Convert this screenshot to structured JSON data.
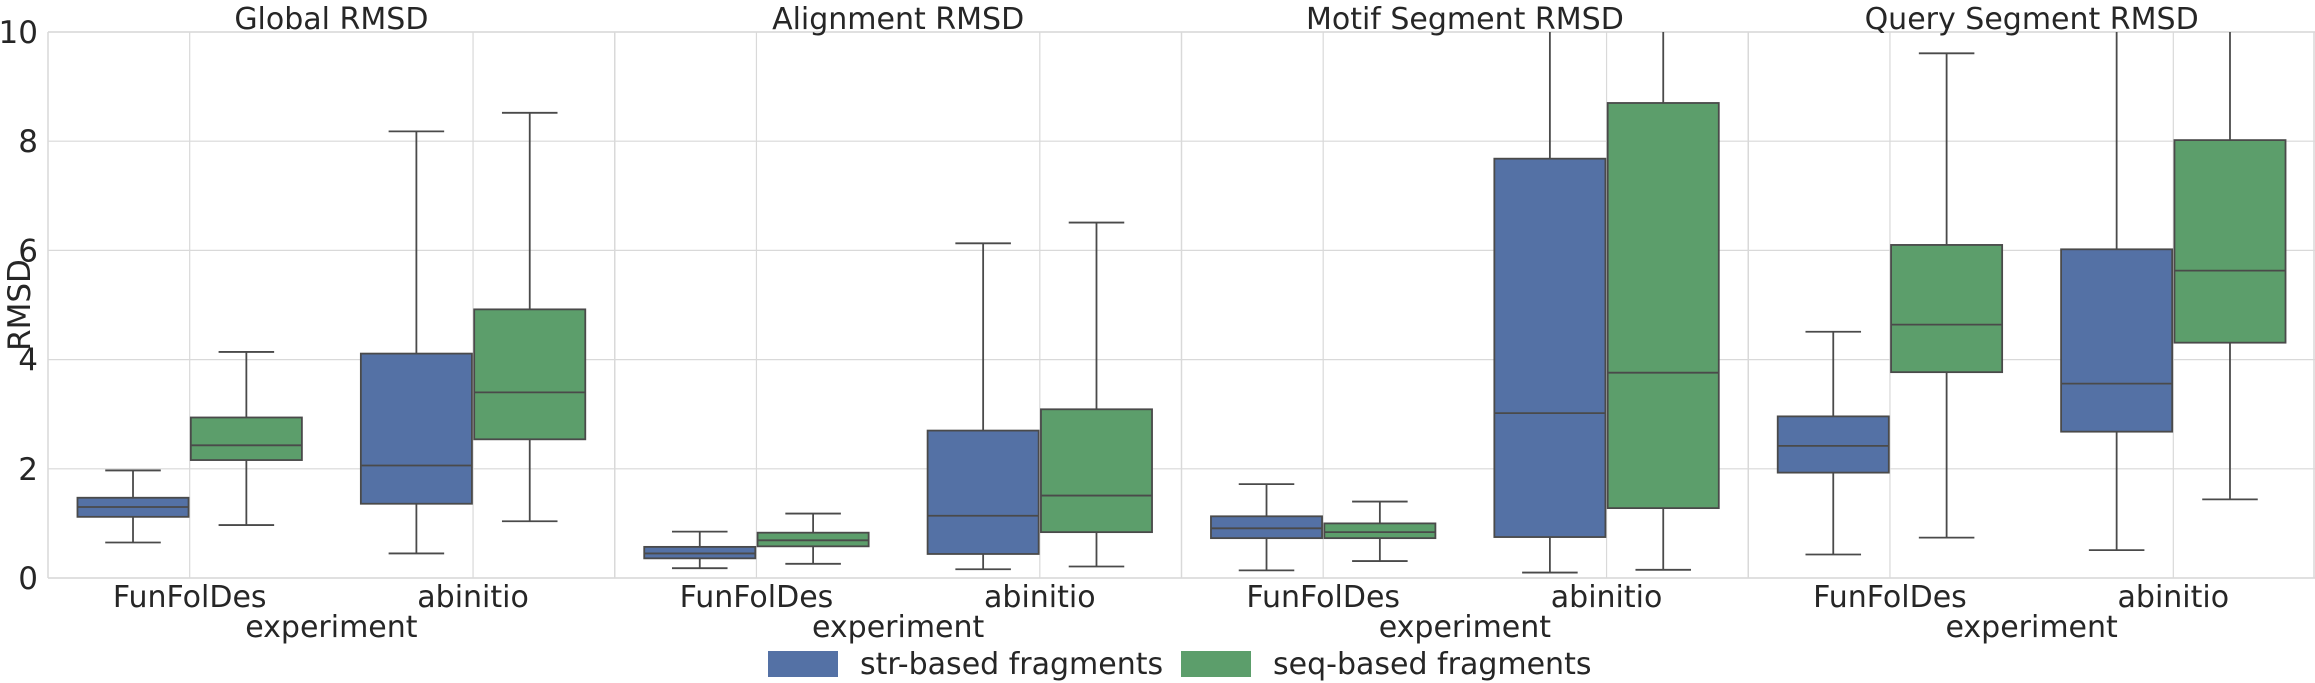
{
  "chart_data": {
    "type": "boxplot",
    "ylabel": "RMSD",
    "xlabel": "experiment",
    "ylim": [
      0,
      10
    ],
    "yticks": [
      0,
      2,
      4,
      6,
      8,
      10
    ],
    "categories": [
      "FunFolDes",
      "abinitio"
    ],
    "legend": {
      "placement": "bottom-center",
      "entries": [
        {
          "name": "str-based fragments",
          "color": "#5471a5"
        },
        {
          "name": "seq-based fragments",
          "color": "#5c9e6b"
        }
      ]
    },
    "panels": [
      {
        "title": "Global RMSD",
        "show_xlabel": true,
        "boxes": [
          [
            {
              "whislo": 0.65,
              "q1": 1.12,
              "med": 1.3,
              "q3": 1.47,
              "whishi": 1.97
            },
            {
              "whislo": 0.97,
              "q1": 2.16,
              "med": 2.43,
              "q3": 2.94,
              "whishi": 4.14
            }
          ],
          [
            {
              "whislo": 0.45,
              "q1": 1.36,
              "med": 2.06,
              "q3": 4.11,
              "whishi": 8.18
            },
            {
              "whislo": 1.04,
              "q1": 2.54,
              "med": 3.4,
              "q3": 4.92,
              "whishi": 8.52
            }
          ]
        ]
      },
      {
        "title": "Alignment RMSD",
        "show_xlabel": true,
        "boxes": [
          [
            {
              "whislo": 0.18,
              "q1": 0.36,
              "med": 0.45,
              "q3": 0.57,
              "whishi": 0.85
            },
            {
              "whislo": 0.26,
              "q1": 0.58,
              "med": 0.69,
              "q3": 0.83,
              "whishi": 1.18
            }
          ],
          [
            {
              "whislo": 0.16,
              "q1": 0.44,
              "med": 1.14,
              "q3": 2.7,
              "whishi": 6.13
            },
            {
              "whislo": 0.21,
              "q1": 0.84,
              "med": 1.51,
              "q3": 3.09,
              "whishi": 6.51
            }
          ]
        ]
      },
      {
        "title": "Motif Segment RMSD",
        "show_xlabel": true,
        "boxes": [
          [
            {
              "whislo": 0.14,
              "q1": 0.73,
              "med": 0.91,
              "q3": 1.13,
              "whishi": 1.72
            },
            {
              "whislo": 0.31,
              "q1": 0.73,
              "med": 0.84,
              "q3": 1.0,
              "whishi": 1.4
            }
          ],
          [
            {
              "whislo": 0.1,
              "q1": 0.75,
              "med": 3.02,
              "q3": 7.68,
              "whishi": 10.5
            },
            {
              "whislo": 0.15,
              "q1": 1.28,
              "med": 3.76,
              "q3": 8.7,
              "whishi": 10.5
            }
          ]
        ]
      },
      {
        "title": "Query Segment RMSD",
        "show_xlabel": true,
        "boxes": [
          [
            {
              "whislo": 0.43,
              "q1": 1.93,
              "med": 2.42,
              "q3": 2.96,
              "whishi": 4.51
            },
            {
              "whislo": 0.74,
              "q1": 3.77,
              "med": 4.64,
              "q3": 6.1,
              "whishi": 9.61
            }
          ],
          [
            {
              "whislo": 0.51,
              "q1": 2.68,
              "med": 3.56,
              "q3": 6.02,
              "whishi": 10.5
            },
            {
              "whislo": 1.44,
              "q1": 4.31,
              "med": 5.63,
              "q3": 8.02,
              "whishi": 10.5
            }
          ]
        ]
      }
    ]
  }
}
